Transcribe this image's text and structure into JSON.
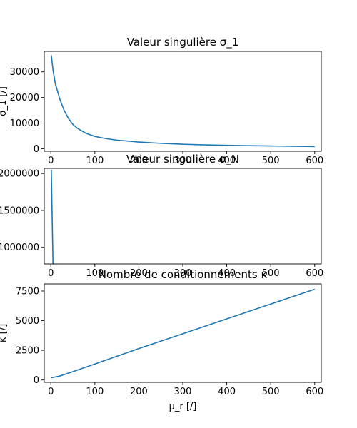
{
  "chart_data": [
    {
      "type": "line",
      "title": "Valeur singulière σ_1",
      "xlabel": "",
      "ylabel": "σ_1 [/]",
      "xlim": [
        -15,
        615
      ],
      "ylim": [
        -1000,
        38000
      ],
      "xticks": [
        0,
        100,
        200,
        300,
        400,
        500,
        600
      ],
      "yticks": [
        0,
        10000,
        20000,
        30000
      ],
      "ytick_labels": [
        "0",
        "10000",
        "20000",
        "30000"
      ],
      "series": [
        {
          "color": "#1f77b4",
          "x": [
            1,
            5,
            10,
            20,
            30,
            40,
            50,
            60,
            80,
            100,
            125,
            150,
            200,
            250,
            300,
            350,
            400,
            450,
            500,
            550,
            600
          ],
          "y": [
            36500,
            30500,
            25500,
            19500,
            15000,
            11800,
            9500,
            8000,
            6000,
            4800,
            3950,
            3350,
            2600,
            2100,
            1750,
            1500,
            1320,
            1180,
            1060,
            960,
            870
          ]
        }
      ]
    },
    {
      "type": "line",
      "title": "Valeur singulière σ_N",
      "xlabel": "",
      "ylabel": "",
      "xlim": [
        -15,
        615
      ],
      "ylim": [
        775000,
        2070000
      ],
      "xticks": [
        0,
        100,
        200,
        300,
        400,
        500,
        600
      ],
      "yticks": [
        1000000,
        1500000,
        2000000
      ],
      "ytick_labels": [
        "1000000",
        "1500000",
        "2000000"
      ],
      "series": [
        {
          "color": "#1f77b4",
          "x": [
            1,
            5,
            100,
            200,
            300,
            400,
            500,
            600
          ],
          "y": [
            2050000,
            735000,
            735000,
            735000,
            735000,
            735000,
            735000,
            735000
          ]
        }
      ]
    },
    {
      "type": "line",
      "title": "Nombre de conditionnements κ",
      "xlabel": "μ_r [/]",
      "ylabel": "κ [/]",
      "xlim": [
        -15,
        615
      ],
      "ylim": [
        -200,
        8100
      ],
      "xticks": [
        0,
        100,
        200,
        300,
        400,
        500,
        600
      ],
      "yticks": [
        0,
        2500,
        5000,
        7500
      ],
      "ytick_labels": [
        "0",
        "2500",
        "5000",
        "7500"
      ],
      "series": [
        {
          "color": "#1f77b4",
          "x": [
            1,
            20,
            50,
            100,
            200,
            300,
            400,
            500,
            600
          ],
          "y": [
            190,
            330,
            700,
            1350,
            2650,
            3900,
            5150,
            6400,
            7650
          ]
        }
      ]
    }
  ]
}
